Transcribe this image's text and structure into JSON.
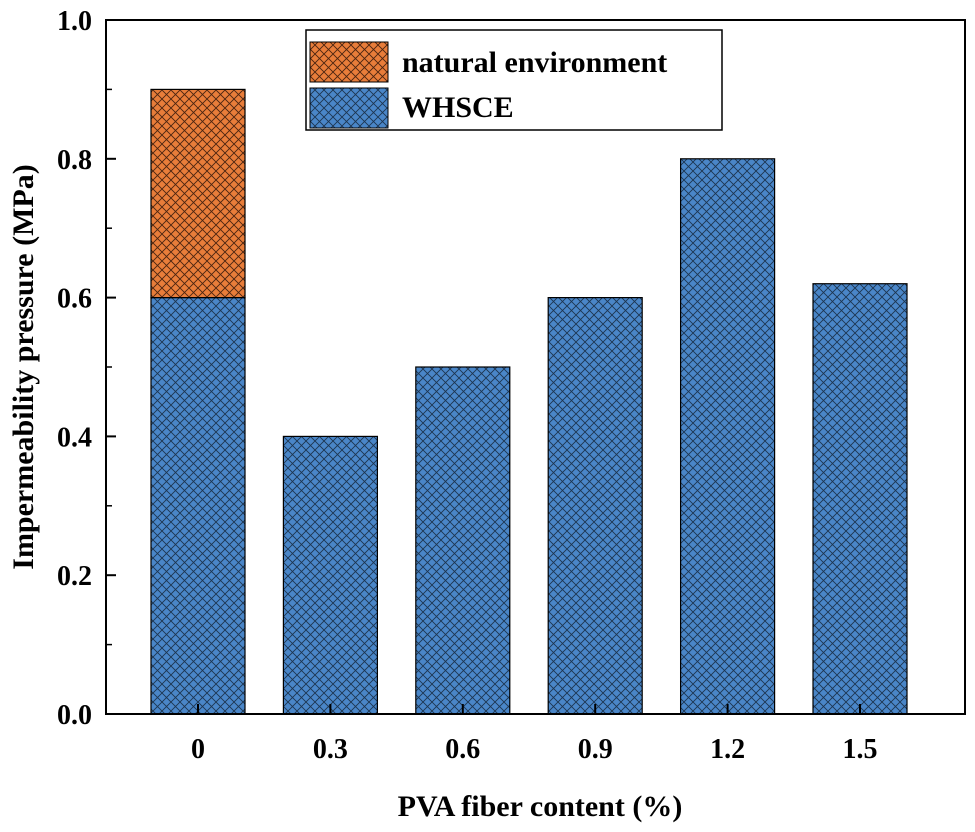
{
  "chart_data": {
    "type": "bar",
    "stacked": true,
    "xlabel": "PVA fiber content (%)",
    "ylabel": "Impermeability pressure (MPa)",
    "categories": [
      "0",
      "0.3",
      "0.6",
      "0.9",
      "1.2",
      "1.5"
    ],
    "ylim": [
      0.0,
      1.0
    ],
    "yticks": [
      "0.0",
      "0.2",
      "0.4",
      "0.6",
      "0.8",
      "1.0"
    ],
    "grid": false,
    "legend_position": "top-center",
    "series": [
      {
        "name": "WHSCE",
        "values": [
          0.6,
          0.4,
          0.5,
          0.6,
          0.8,
          0.62
        ],
        "color": "#4a86c8"
      },
      {
        "name": "natural environment",
        "values": [
          0.3,
          0,
          0,
          0,
          0,
          0
        ],
        "color": "#e87d3a"
      }
    ],
    "legend": [
      "natural environment",
      "WHSCE"
    ]
  }
}
